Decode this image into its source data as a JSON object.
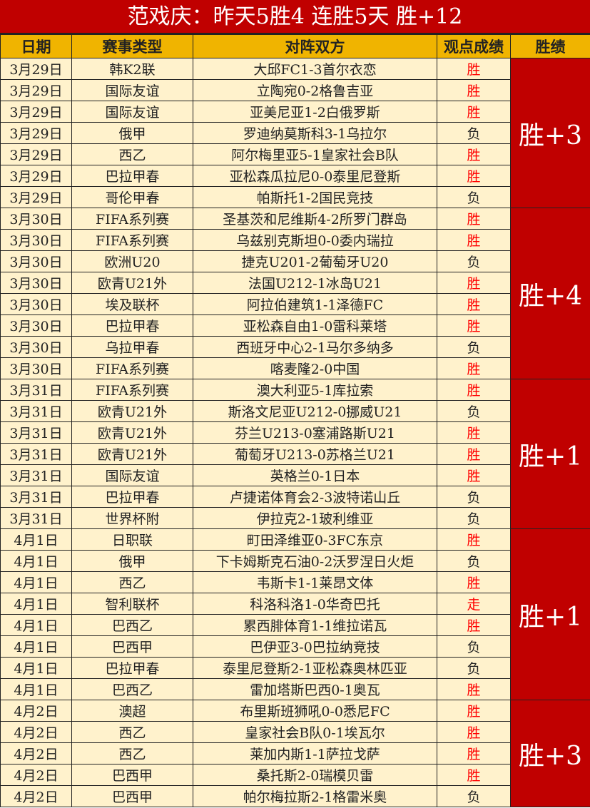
{
  "title": "范戏庆：昨天5胜4  连胜5天  胜+12",
  "headers": [
    "日期",
    "赛事类型",
    "对阵双方",
    "观点成绩",
    "胜绩"
  ],
  "colors": {
    "title_bg": "#c00000",
    "header_bg": "#f0b400",
    "row_bg": "#fff2cc",
    "win": "#ff0000",
    "score_bg": "#c00000"
  },
  "groups": [
    {
      "score": "胜+3",
      "rows": [
        [
          "3月29日",
          "韩K2联",
          "大邱FC1-3首尔衣恋",
          "胜"
        ],
        [
          "3月29日",
          "国际友谊",
          "立陶宛0-2格鲁吉亚",
          "胜"
        ],
        [
          "3月29日",
          "国际友谊",
          "亚美尼亚1-2白俄罗斯",
          "胜"
        ],
        [
          "3月29日",
          "俄甲",
          "罗迪纳莫斯科3-1乌拉尔",
          "负"
        ],
        [
          "3月29日",
          "西乙",
          "阿尔梅里亚5-1皇家社会B队",
          "胜"
        ],
        [
          "3月29日",
          "巴拉甲春",
          "亚松森瓜拉尼0-0泰里尼登斯",
          "胜"
        ],
        [
          "3月29日",
          "哥伦甲春",
          "帕斯托1-2国民竞技",
          "负"
        ]
      ]
    },
    {
      "score": "胜+4",
      "rows": [
        [
          "3月30日",
          "FIFA系列赛",
          "圣基茨和尼维斯4-2所罗门群岛",
          "胜"
        ],
        [
          "3月30日",
          "FIFA系列赛",
          "乌兹别克斯坦0-0委内瑞拉",
          "胜"
        ],
        [
          "3月30日",
          "欧洲U20",
          "捷克U201-2葡萄牙U20",
          "负"
        ],
        [
          "3月30日",
          "欧青U21外",
          "法国U212-1冰岛U21",
          "胜"
        ],
        [
          "3月30日",
          "埃及联杯",
          "阿拉伯建筑1-1泽德FC",
          "胜"
        ],
        [
          "3月30日",
          "巴拉甲春",
          "亚松森自由1-0雷科莱塔",
          "胜"
        ],
        [
          "3月30日",
          "乌拉甲春",
          "西班牙中心2-1马尔多纳多",
          "负"
        ],
        [
          "3月30日",
          "FIFA系列赛",
          "喀麦隆2-0中国",
          "胜"
        ]
      ]
    },
    {
      "score": "胜+1",
      "rows": [
        [
          "3月31日",
          "FIFA系列赛",
          "澳大利亚5-1库拉索",
          "胜"
        ],
        [
          "3月31日",
          "欧青U21外",
          "斯洛文尼亚U212-0挪威U21",
          "负"
        ],
        [
          "3月31日",
          "欧青U21外",
          "芬兰U213-0塞浦路斯U21",
          "胜"
        ],
        [
          "3月31日",
          "欧青U21外",
          "葡萄牙U213-0苏格兰U21",
          "胜"
        ],
        [
          "3月31日",
          "国际友谊",
          "英格兰0-1日本",
          "胜"
        ],
        [
          "3月31日",
          "巴拉甲春",
          "卢捷诺体育会2-3波特诺山丘",
          "负"
        ],
        [
          "3月31日",
          "世界杯附",
          "伊拉克2-1玻利维亚",
          "负"
        ]
      ]
    },
    {
      "score": "胜+1",
      "rows": [
        [
          "4月1日",
          "日职联",
          "町田泽维亚0-3FC东京",
          "胜"
        ],
        [
          "4月1日",
          "俄甲",
          "下卡姆斯克石油0-2沃罗涅日火炬",
          "负"
        ],
        [
          "4月1日",
          "西乙",
          "韦斯卡1-1莱昂文体",
          "胜"
        ],
        [
          "4月1日",
          "智利联杯",
          "科洛科洛1-0华奇巴托",
          "走"
        ],
        [
          "4月1日",
          "巴西乙",
          "累西腓体育1-1维拉诺瓦",
          "胜"
        ],
        [
          "4月1日",
          "巴西甲",
          "巴伊亚3-0巴拉纳竞技",
          "负"
        ],
        [
          "4月1日",
          "巴拉甲春",
          "泰里尼登斯2-1亚松森奥林匹亚",
          "负"
        ],
        [
          "4月1日",
          "巴西乙",
          "雷加塔斯巴西0-1奥瓦",
          "胜"
        ]
      ]
    },
    {
      "score": "胜+3",
      "rows": [
        [
          "4月2日",
          "澳超",
          "布里斯班狮吼0-0悉尼FC",
          "胜"
        ],
        [
          "4月2日",
          "西乙",
          "皇家社会B队0-1埃瓦尔",
          "胜"
        ],
        [
          "4月2日",
          "西乙",
          "莱加内斯1-1萨拉戈萨",
          "胜"
        ],
        [
          "4月2日",
          "巴西甲",
          "桑托斯2-0瑞模贝雷",
          "胜"
        ],
        [
          "4月2日",
          "巴西甲",
          "帕尔梅拉斯2-1格雷米奥",
          "负"
        ]
      ]
    }
  ]
}
